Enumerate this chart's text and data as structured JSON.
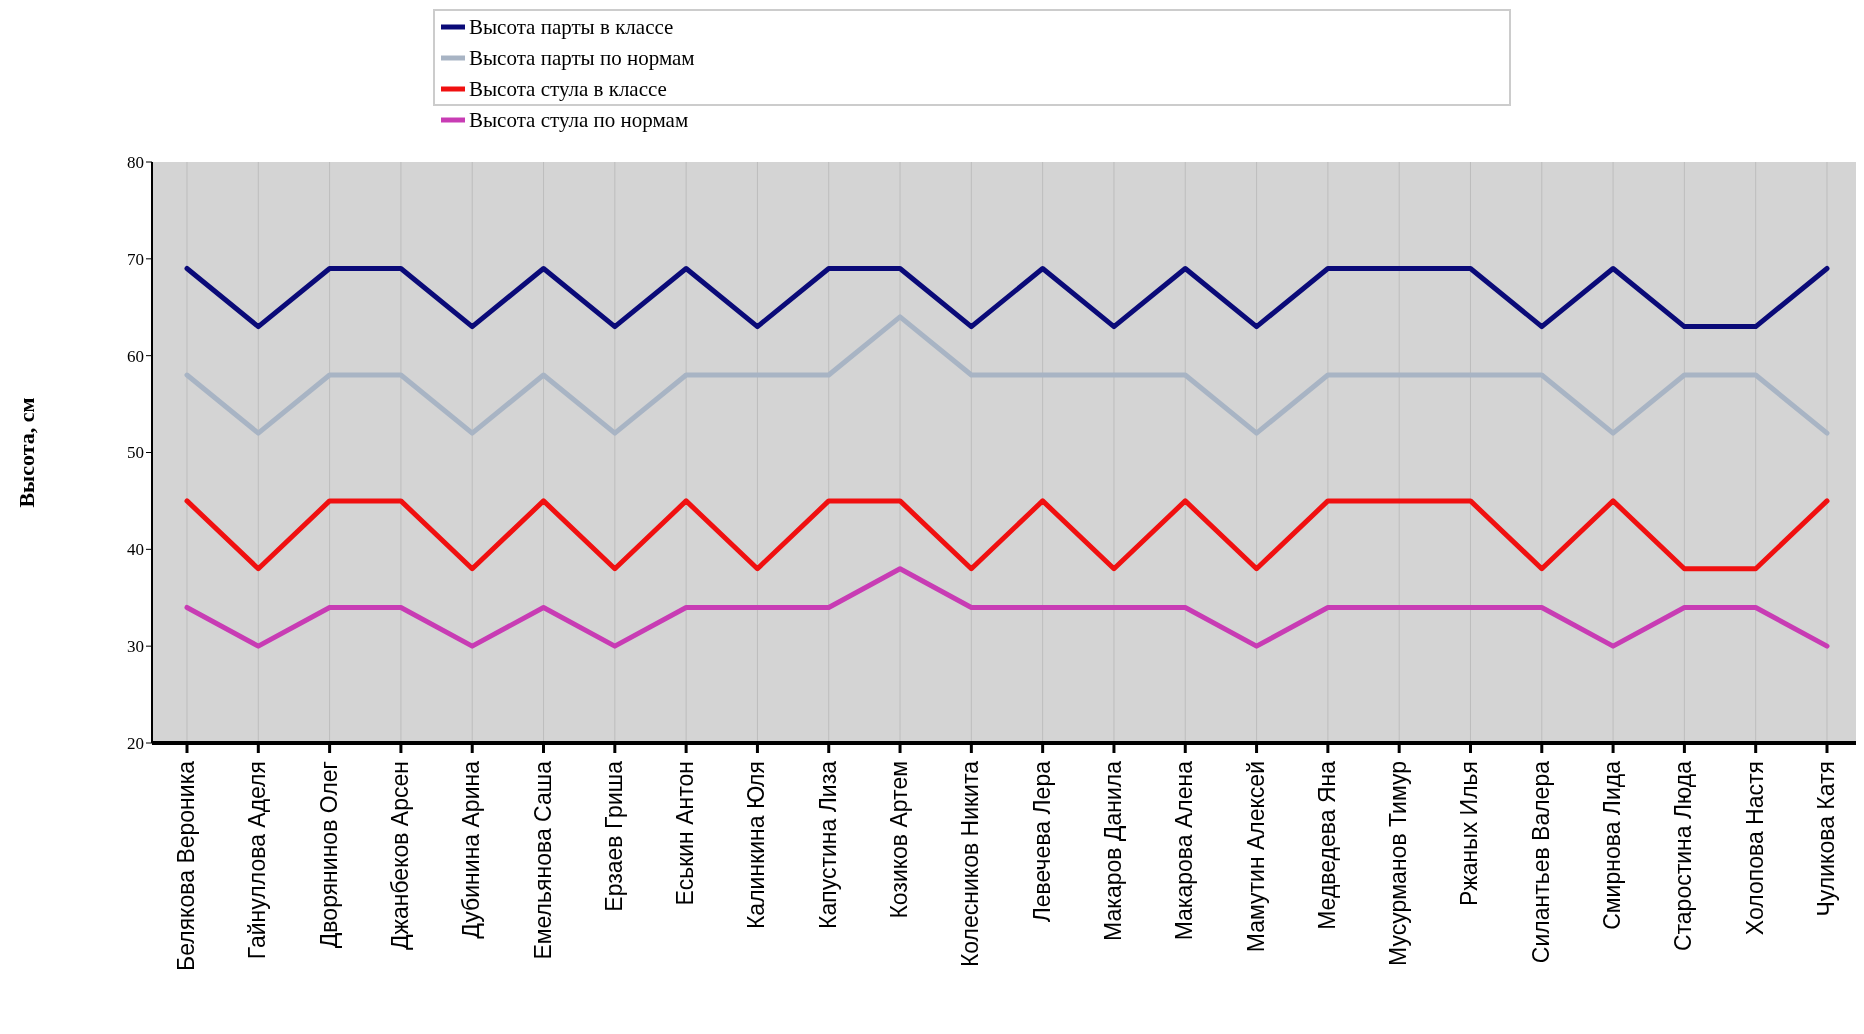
{
  "chart_data": {
    "type": "line",
    "ylabel": "Высота, см",
    "categories": [
      "Белякова Вероника",
      "Гайнуллова Аделя",
      "Дворянинов Олег",
      "Джанбеков Арсен",
      "Дубинина Арина",
      "Емельянова Саша",
      "Ерзаев Гриша",
      "Еськин Антон",
      "Калинкина Юля",
      "Капустина Лиза",
      "Козиков Артем",
      "Колесников Никита",
      "Левечева Лера",
      "Макаров Данила",
      "Макарова Алена",
      "Мамутин Алексей",
      "Медведева Яна",
      "Мусурманов Тимур",
      "Ржаных Илья",
      "Силантьев Валера",
      "Смирнова Лида",
      "Старостина Люда",
      "Холопова Настя",
      "Чуликова Катя"
    ],
    "series": [
      {
        "name": "Высота парты в классе",
        "color": "#0a0a78",
        "values": [
          69,
          63,
          69,
          69,
          63,
          69,
          63,
          69,
          63,
          69,
          69,
          63,
          69,
          63,
          69,
          63,
          69,
          69,
          69,
          63,
          69,
          63,
          63,
          69
        ]
      },
      {
        "name": "Высота парты по нормам",
        "color": "#a8b4c4",
        "values": [
          58,
          52,
          58,
          58,
          52,
          58,
          52,
          58,
          58,
          58,
          64,
          58,
          58,
          58,
          58,
          52,
          58,
          58,
          58,
          58,
          52,
          58,
          58,
          52
        ]
      },
      {
        "name": "Высота стула в классе",
        "color": "#f01010",
        "values": [
          45,
          38,
          45,
          45,
          38,
          45,
          38,
          45,
          38,
          45,
          45,
          38,
          45,
          38,
          45,
          38,
          45,
          45,
          45,
          38,
          45,
          38,
          38,
          45
        ]
      },
      {
        "name": "Высота стула по нормам",
        "color": "#c83cb4",
        "values": [
          34,
          30,
          34,
          34,
          30,
          34,
          30,
          34,
          34,
          34,
          38,
          34,
          34,
          34,
          34,
          30,
          34,
          34,
          34,
          34,
          30,
          34,
          34,
          30
        ]
      }
    ],
    "ylim": [
      20,
      80
    ],
    "yticks": [
      20,
      30,
      40,
      50,
      60,
      70,
      80
    ],
    "grid": "x",
    "legend": "top",
    "marker": "none",
    "line_style": "solid"
  }
}
